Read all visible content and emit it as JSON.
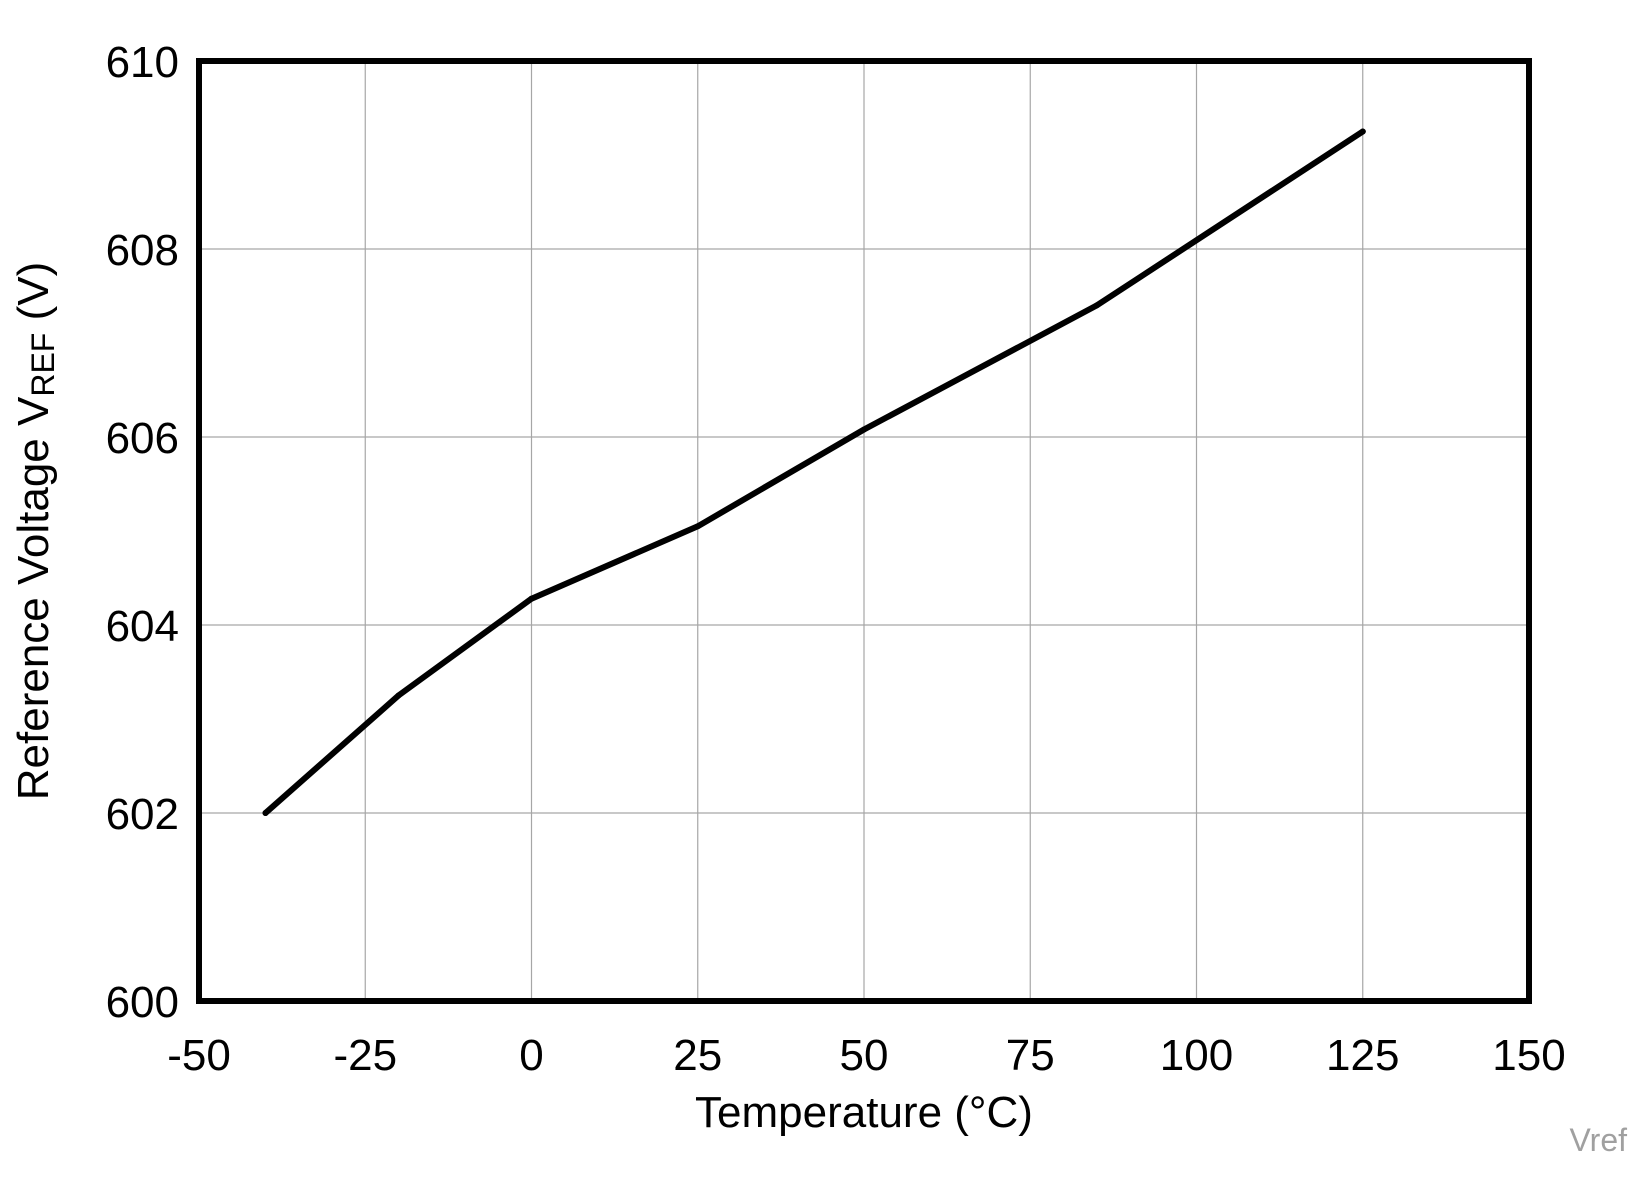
{
  "chart_data": {
    "type": "line",
    "title": "",
    "xlabel": "Temperature (°C)",
    "ylabel": {
      "main": "Reference Voltage V",
      "subscript": "REF",
      "unit": " (V)"
    },
    "xlim": [
      -50,
      150
    ],
    "ylim": [
      600,
      610
    ],
    "x_ticks": [
      -50,
      -25,
      0,
      25,
      50,
      75,
      100,
      125,
      150
    ],
    "y_ticks": [
      600,
      602,
      604,
      606,
      608,
      610
    ],
    "grid": true,
    "legend": "none",
    "series": [
      {
        "name": "Vref",
        "color": "#000000",
        "x": [
          -40,
          -20,
          0,
          25,
          50,
          85,
          125
        ],
        "y": [
          602.0,
          603.25,
          604.28,
          605.05,
          606.08,
          607.4,
          609.25
        ]
      }
    ],
    "watermark": "Vref"
  }
}
